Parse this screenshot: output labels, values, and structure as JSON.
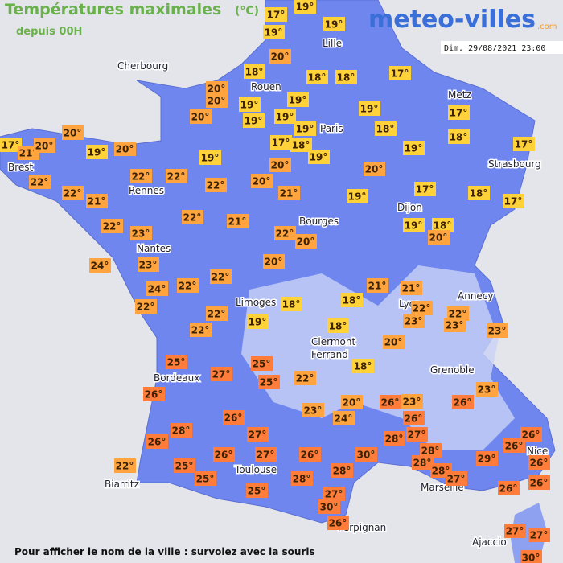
{
  "header": {
    "title": "Températures maximales",
    "unit": "(°C)",
    "subtitle": "depuis 00H",
    "logo": "meteo-villes",
    "logo_suffix": ".com",
    "date": "Dim. 29/08/2021 23:00"
  },
  "cities": [
    "Cherbourg",
    "Lille",
    "Rouen",
    "Paris",
    "Metz",
    "Strasbourg",
    "Brest",
    "Rennes",
    "Nantes",
    "Bourges",
    "Dijon",
    "Limoges",
    "Lyon",
    "Annecy",
    "Clermont",
    "Ferrand",
    "Grenoble",
    "Bordeaux",
    "Toulouse",
    "Biarritz",
    "Marseille",
    "Nice",
    "Perpignan",
    "Ajaccio"
  ],
  "temperatures": [
    "17°",
    "19°",
    "19°",
    "19°",
    "20°",
    "17°",
    "18°",
    "18°",
    "18°",
    "20°",
    "20°",
    "19°",
    "19°",
    "19°",
    "17°",
    "19°",
    "19°",
    "19°",
    "18°",
    "18°",
    "20°",
    "17°",
    "21°",
    "20°",
    "19°",
    "20°",
    "17°",
    "18°",
    "19°",
    "19°",
    "17°",
    "20°",
    "19°",
    "20°",
    "20°",
    "22°",
    "22°",
    "22°",
    "22°",
    "20°",
    "21°",
    "19°",
    "17°",
    "18°",
    "17°",
    "22°",
    "21°",
    "22°",
    "23°",
    "22°",
    "21°",
    "22°",
    "20°",
    "19°",
    "18°",
    "20°",
    "24°",
    "23°",
    "22°",
    "20°",
    "24°",
    "22°",
    "22°",
    "18°",
    "21°",
    "21°",
    "22°",
    "22°",
    "23°",
    "23°",
    "18°",
    "22°",
    "19°",
    "22°",
    "18°",
    "23°",
    "20°",
    "25°",
    "27°",
    "25°",
    "25°",
    "22°",
    "18°",
    "26°",
    "23°",
    "20°",
    "24°",
    "26°",
    "23°",
    "26°",
    "26°",
    "23°",
    "26°",
    "28°",
    "26°",
    "27°",
    "28°",
    "27°",
    "26°",
    "26°",
    "22°",
    "25°",
    "26°",
    "27°",
    "26°",
    "30°",
    "28°",
    "28°",
    "29°",
    "26°",
    "25°",
    "28°",
    "28°",
    "27°",
    "26°",
    "25°",
    "28°",
    "26°",
    "27°",
    "30°",
    "26°",
    "27°",
    "27°",
    "30°"
  ],
  "footer": "Pour afficher le nom de la ville : survolez avec la souris"
}
